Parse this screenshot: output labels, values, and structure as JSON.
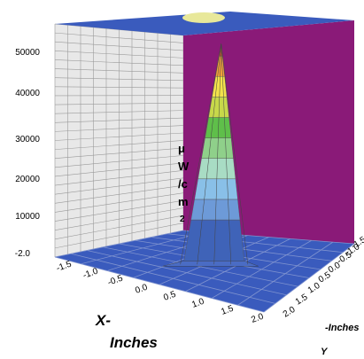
{
  "chart_data": {
    "type": "surface",
    "title": "",
    "z_unit_label": [
      "μ",
      "W",
      "/c",
      "m",
      "2"
    ],
    "z_ticks": [
      "50000",
      "40000",
      "30000",
      "20000",
      "10000"
    ],
    "z_origin_label": "-2.0",
    "x_ticks": [
      "-1.5",
      "-1.0",
      "-0.5",
      "0.0",
      "0.5",
      "1.0",
      "1.5",
      "2.0"
    ],
    "y_ticks": [
      "2.0",
      "1.5",
      "1.0",
      "0.5",
      "0.0",
      "-0.5",
      "-1.0",
      "-1.5"
    ],
    "x_axis_label": [
      "X-",
      "Inches"
    ],
    "y_axis_label": [
      "-Inches",
      "Y"
    ],
    "x_range": [
      -2.0,
      2.0
    ],
    "y_range": [
      -2.0,
      2.0
    ],
    "z_range": [
      0,
      55000
    ],
    "peak": {
      "x": 0.0,
      "y": 0.0,
      "z": 53000
    },
    "color_bands": [
      {
        "from": 0,
        "to": 10000,
        "color": "#3f63b8"
      },
      {
        "from": 10000,
        "to": 15000,
        "color": "#6d9ad8"
      },
      {
        "from": 15000,
        "to": 20000,
        "color": "#89c0e8"
      },
      {
        "from": 20000,
        "to": 25000,
        "color": "#a8dcc4"
      },
      {
        "from": 25000,
        "to": 30000,
        "color": "#8fd08a"
      },
      {
        "from": 30000,
        "to": 35000,
        "color": "#5fbf4a"
      },
      {
        "from": 35000,
        "to": 40000,
        "color": "#c7d84a"
      },
      {
        "from": 40000,
        "to": 45000,
        "color": "#f2e24b"
      },
      {
        "from": 45000,
        "to": 50000,
        "color": "#f2a23a"
      },
      {
        "from": 50000,
        "to": 55000,
        "color": "#e85a2a"
      }
    ],
    "colors": {
      "floor": "#3a5bbd",
      "back_wall": "#e8e8e8",
      "right_wall": "#8a1a78",
      "ceiling": "#3a5bbd",
      "grid": "#9a9a9a"
    }
  }
}
